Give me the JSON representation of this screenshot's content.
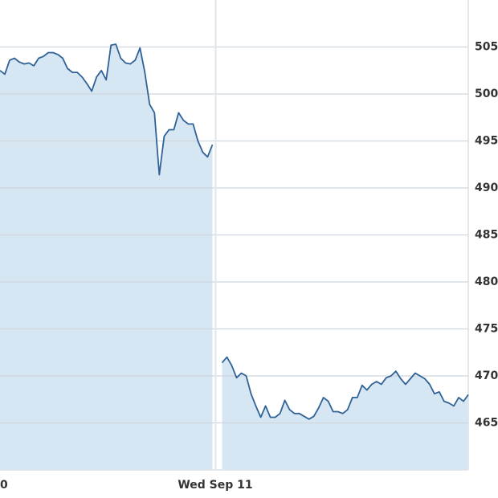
{
  "chart_data": {
    "type": "area",
    "color": "#2f6296",
    "fill": "#d7e6f3",
    "x_tick_labels": [
      "0",
      "Wed Sep 11"
    ],
    "ylim": [
      460,
      510
    ],
    "yticks": [
      465,
      470,
      475,
      480,
      485,
      490,
      495,
      500,
      505
    ],
    "grid": true,
    "values": [
      502.5,
      502.1,
      503.6,
      503.8,
      503.4,
      503.2,
      503.3,
      503.0,
      503.8,
      504.0,
      504.4,
      504.4,
      504.2,
      503.8,
      502.7,
      502.3,
      502.3,
      501.8,
      501.1,
      500.3,
      501.8,
      502.5,
      501.5,
      505.2,
      505.3,
      503.8,
      503.3,
      503.2,
      503.6,
      504.9,
      502.3,
      498.9,
      498.0,
      491.4,
      495.5,
      496.2,
      496.2,
      498.0,
      497.2,
      496.8,
      496.8,
      495.0,
      493.8,
      493.3,
      494.6,
      null,
      471.4,
      472.0,
      471.1,
      469.8,
      470.3,
      470.0,
      468.1,
      466.8,
      465.6,
      466.8,
      465.6,
      465.6,
      466.0,
      467.4,
      466.4,
      466.0,
      466.0,
      465.7,
      465.4,
      465.7,
      466.6,
      467.7,
      467.3,
      466.2,
      466.2,
      466.0,
      466.4,
      467.7,
      467.7,
      469.0,
      468.5,
      469.1,
      469.4,
      469.1,
      469.8,
      470.0,
      470.5,
      469.7,
      469.1,
      469.7,
      470.3,
      470.0,
      469.7,
      469.1,
      468.1,
      468.3,
      467.3,
      467.1,
      466.8,
      467.7,
      467.3,
      468.0
    ]
  }
}
